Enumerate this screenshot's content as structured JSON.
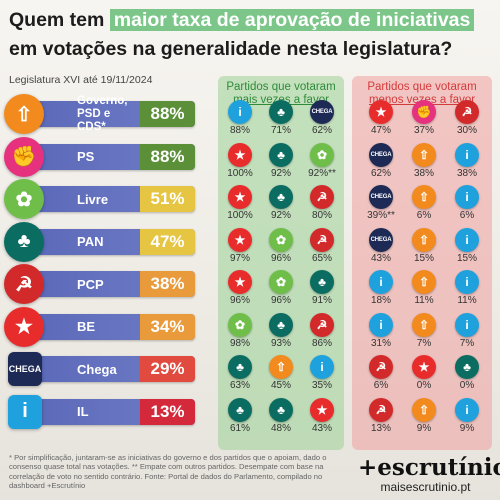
{
  "title": {
    "pre": "Quem tem ",
    "highlight": "maior taxa de aprovação de iniciativas",
    "post": " em votações na generalidade nesta legislatura?"
  },
  "subtitle": "Legislatura XVI até 19/11/2024",
  "panel_more": {
    "line1": "Partidos que votaram",
    "line2_u": "mais vezes a favor"
  },
  "panel_less": {
    "line1": "Partidos que votaram",
    "line2_u": "menos vezes a favor"
  },
  "colors": {
    "il": "#1fa1dd",
    "pan": "#0b6d61",
    "chega": "#1d2a55",
    "livre": "#6fbe4a",
    "ps": "#e5317e",
    "pcp": "#d22a2a",
    "be": "#e82c2c",
    "ad": "#f28a1e"
  },
  "rows": [
    {
      "name": "Governo, PSD e CDS*",
      "pct": "88%",
      "pct_color": "#5b8f38",
      "logo": "ad",
      "more": [
        {
          "p": "il",
          "v": "88%"
        },
        {
          "p": "pan",
          "v": "71%"
        },
        {
          "p": "chega",
          "v": "62%"
        }
      ],
      "less": [
        {
          "p": "be",
          "v": "47%"
        },
        {
          "p": "ps",
          "v": "37%"
        },
        {
          "p": "pcp",
          "v": "30%"
        }
      ]
    },
    {
      "name": "PS",
      "pct": "88%",
      "pct_color": "#5b8f38",
      "logo": "ps",
      "more": [
        {
          "p": "be",
          "v": "100%"
        },
        {
          "p": "pan",
          "v": "92%"
        },
        {
          "p": "livre",
          "v": "92%**"
        }
      ],
      "less": [
        {
          "p": "chega",
          "v": "62%"
        },
        {
          "p": "ad",
          "v": "38%"
        },
        {
          "p": "il",
          "v": "38%"
        }
      ]
    },
    {
      "name": "Livre",
      "pct": "51%",
      "pct_color": "#e5c542",
      "logo": "livre",
      "more": [
        {
          "p": "be",
          "v": "100%"
        },
        {
          "p": "pan",
          "v": "92%"
        },
        {
          "p": "pcp",
          "v": "80%"
        }
      ],
      "less": [
        {
          "p": "chega",
          "v": "39%**"
        },
        {
          "p": "ad",
          "v": "6%"
        },
        {
          "p": "il",
          "v": "6%"
        }
      ]
    },
    {
      "name": "PAN",
      "pct": "47%",
      "pct_color": "#e5c542",
      "logo": "pan",
      "more": [
        {
          "p": "be",
          "v": "97%"
        },
        {
          "p": "livre",
          "v": "96%"
        },
        {
          "p": "pcp",
          "v": "65%"
        }
      ],
      "less": [
        {
          "p": "chega",
          "v": "43%"
        },
        {
          "p": "ad",
          "v": "15%"
        },
        {
          "p": "il",
          "v": "15%"
        }
      ]
    },
    {
      "name": "PCP",
      "pct": "38%",
      "pct_color": "#e99a3b",
      "logo": "pcp",
      "more": [
        {
          "p": "be",
          "v": "96%"
        },
        {
          "p": "livre",
          "v": "96%"
        },
        {
          "p": "pan",
          "v": "91%"
        }
      ],
      "less": [
        {
          "p": "il",
          "v": "18%"
        },
        {
          "p": "ad",
          "v": "11%"
        },
        {
          "p": "il",
          "v": "11%"
        }
      ]
    },
    {
      "name": "BE",
      "pct": "34%",
      "pct_color": "#e99a3b",
      "logo": "be",
      "more": [
        {
          "p": "livre",
          "v": "98%"
        },
        {
          "p": "pan",
          "v": "93%"
        },
        {
          "p": "pcp",
          "v": "86%"
        }
      ],
      "less": [
        {
          "p": "il",
          "v": "31%"
        },
        {
          "p": "ad",
          "v": "7%"
        },
        {
          "p": "il",
          "v": "7%"
        }
      ]
    },
    {
      "name": "Chega",
      "pct": "29%",
      "pct_color": "#e14a3e",
      "logo": "chega",
      "more": [
        {
          "p": "pan",
          "v": "63%"
        },
        {
          "p": "ad",
          "v": "45%"
        },
        {
          "p": "il",
          "v": "35%"
        }
      ],
      "less": [
        {
          "p": "pcp",
          "v": "6%"
        },
        {
          "p": "be",
          "v": "0%"
        },
        {
          "p": "pan",
          "v": "0%"
        }
      ]
    },
    {
      "name": "IL",
      "pct": "13%",
      "pct_color": "#d4293a",
      "logo": "il",
      "more": [
        {
          "p": "pan",
          "v": "61%"
        },
        {
          "p": "pan",
          "v": "48%"
        },
        {
          "p": "be",
          "v": "43%"
        }
      ],
      "less": [
        {
          "p": "pcp",
          "v": "13%"
        },
        {
          "p": "ad",
          "v": "9%"
        },
        {
          "p": "il",
          "v": "9%"
        }
      ]
    }
  ],
  "chart_data": {
    "type": "table",
    "title": "Quem tem maior taxa de aprovação de iniciativas em votações na generalidade nesta legislatura?",
    "categories": [
      "Governo, PSD e CDS*",
      "PS",
      "Livre",
      "PAN",
      "PCP",
      "BE",
      "Chega",
      "IL"
    ],
    "values": [
      88,
      88,
      51,
      47,
      38,
      34,
      29,
      13
    ]
  },
  "footnote": "* Por simplificação, juntaram-se as iniciativas do governo e dos partidos que o apoiam, dado o consenso quase total nas votações. ** Empate com outros partidos. Desempate com base na correlação de voto no sentido contrário. Fonte: Portal de dados do Parlamento, compilado no dashboard +Escrutínio",
  "brand": {
    "name": "+escrutínio",
    "url": "maisescrutinio.pt"
  }
}
